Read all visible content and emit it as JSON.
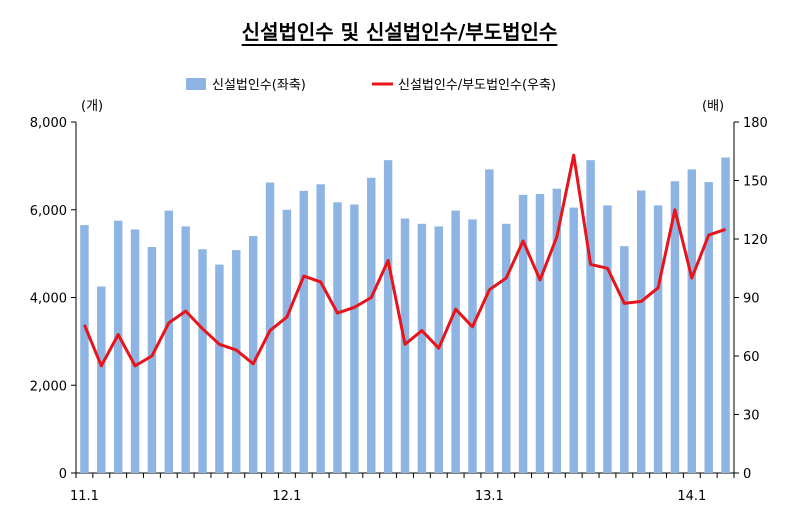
{
  "chart_data": {
    "type": "bar",
    "title": "신설법인수  및  신설법인수/부도법인수",
    "legend": {
      "placement": "top",
      "bar_label": "신설법인수(좌축)",
      "line_label": "신설법인수/부도법인수(우축)"
    },
    "y_left_unit": "(개)",
    "y_right_unit": "(배)",
    "ylim_left": [
      0,
      8000
    ],
    "ylim_right": [
      0,
      180
    ],
    "y_left_ticks": [
      "0",
      "2,000",
      "4,000",
      "6,000",
      "8,000"
    ],
    "y_right_ticks": [
      "0",
      "30",
      "60",
      "90",
      "120",
      "150",
      "180"
    ],
    "x_tick_labels": [
      {
        "index": 0,
        "label": "11.1"
      },
      {
        "index": 12,
        "label": "12.1"
      },
      {
        "index": 24,
        "label": "13.1"
      },
      {
        "index": 36,
        "label": "14.1"
      }
    ],
    "grid": false,
    "series": [
      {
        "name": "신설법인수(좌축)",
        "type": "bar",
        "axis": "left",
        "values": [
          5650,
          4250,
          5750,
          5550,
          5150,
          5980,
          5620,
          5100,
          4750,
          5080,
          5400,
          6620,
          6000,
          6430,
          6580,
          6170,
          6120,
          6730,
          7130,
          5800,
          5680,
          5620,
          5980,
          5780,
          6920,
          5680,
          6340,
          6360,
          6480,
          6050,
          7130,
          6100,
          5170,
          6440,
          6100,
          6650,
          6920,
          6630,
          7190
        ]
      },
      {
        "name": "신설법인수/부도법인수(우축)",
        "type": "line",
        "axis": "right",
        "values": [
          76,
          55,
          71,
          55,
          60,
          77,
          83,
          74,
          66,
          63,
          56,
          73,
          80,
          101,
          98,
          82,
          85,
          90,
          109,
          66,
          73,
          64,
          84,
          75,
          94,
          100,
          119,
          99,
          121,
          163,
          107,
          105,
          87,
          88,
          95,
          135,
          100,
          122,
          125
        ]
      }
    ],
    "colors": {
      "bar": "#8db4e2",
      "line": "#e8141b",
      "axis": "#000000"
    }
  }
}
